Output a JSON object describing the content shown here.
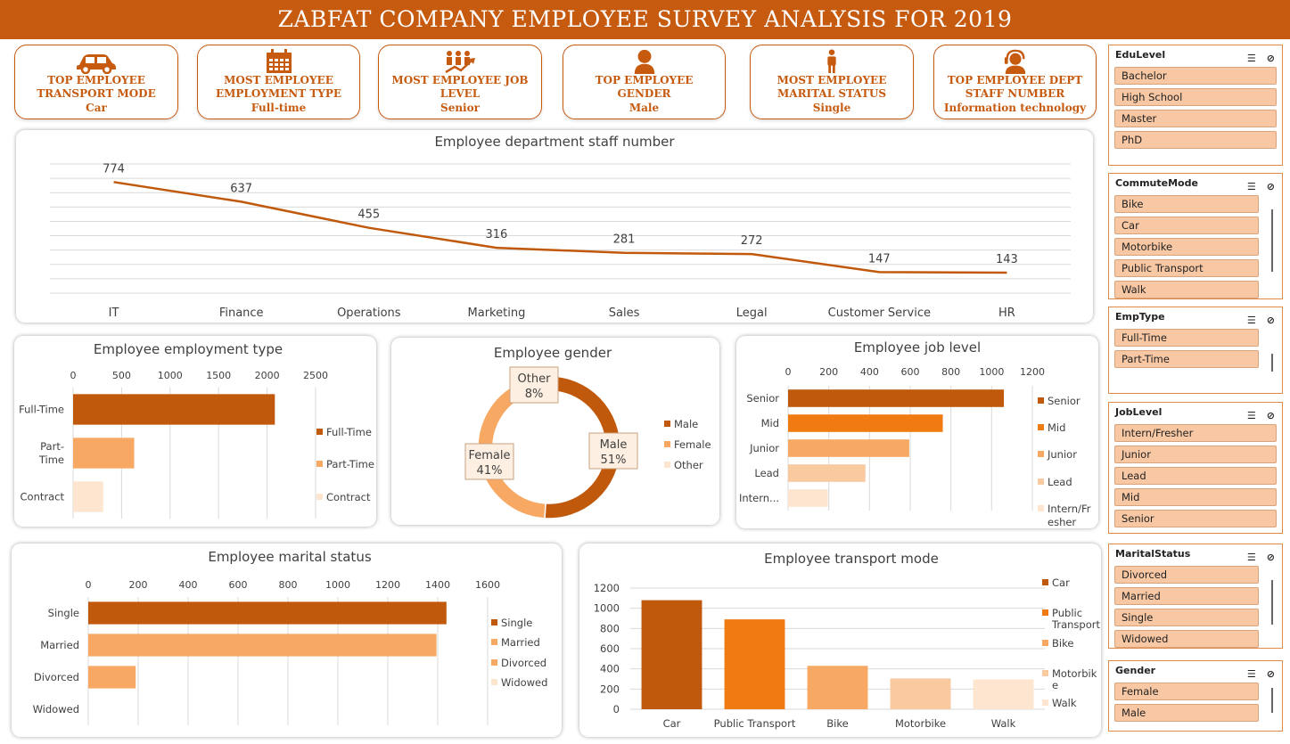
{
  "title": "ZABFAT COMPANY EMPLOYEE SURVEY ANALYSIS FOR 2019",
  "kpis": [
    {
      "title_1": "TOP EMPLOYEE",
      "title_2": "TRANSPORT MODE",
      "value": "Car",
      "icon": "car-icon"
    },
    {
      "title_1": "MOST EMPLOYEE",
      "title_2": "EMPLOYMENT TYPE",
      "value": "Full-time",
      "icon": "calendar-icon"
    },
    {
      "title_1": "MOST EMPLOYEE JOB",
      "title_2": "LEVEL",
      "value": "Senior",
      "icon": "growth-people-icon"
    },
    {
      "title_1": "TOP EMPLOYEE",
      "title_2": "GENDER",
      "value": "Male",
      "icon": "person-icon"
    },
    {
      "title_1": "MOST EMPLOYEE",
      "title_2": "MARITAL STATUS",
      "value": "Single",
      "icon": "standing-person-icon"
    },
    {
      "title_1": "TOP  EMPLOYEE DEPT",
      "title_2": "STAFF NUMBER",
      "value": "Information technology",
      "icon": "support-agent-icon"
    }
  ],
  "colors": {
    "accent": "#c65a0f",
    "dark": "#c0590c",
    "orange": "#f07b12",
    "light": "#f7a862",
    "pale": "#f9c9a0",
    "paler": "#fde5d0",
    "slicer_item": "#f8c7a3"
  },
  "chart_data": [
    {
      "id": "dept",
      "type": "line",
      "title": "Employee department staff number",
      "categories": [
        "IT",
        "Finance",
        "Operations",
        "Marketing",
        "Sales",
        "Legal",
        "Customer Service",
        "HR"
      ],
      "values": [
        774,
        637,
        455,
        316,
        281,
        272,
        147,
        143
      ],
      "ylim": [
        0,
        900
      ],
      "grid": true,
      "legend": "none"
    },
    {
      "id": "emptype",
      "type": "bar",
      "orientation": "horizontal",
      "title": "Employee employment type",
      "categories": [
        "Full-Time",
        "Part-Time",
        "Contract"
      ],
      "values": [
        2080,
        630,
        310
      ],
      "xlim": [
        0,
        2500
      ],
      "ticks": [
        "0",
        "500",
        "1000",
        "1500",
        "2000",
        "2500"
      ],
      "legend": "right",
      "legend_entries": [
        "Full-Time",
        "Part-Time",
        "Contract"
      ]
    },
    {
      "id": "gender",
      "type": "pie",
      "title": "Employee gender",
      "categories": [
        "Male",
        "Female",
        "Other"
      ],
      "values": [
        51,
        41,
        8
      ],
      "labels": [
        "Male",
        "Female",
        "Other"
      ],
      "percent_labels": [
        "51%",
        "41%",
        "8%"
      ],
      "legend": "right",
      "legend_entries": [
        "Male",
        "Female",
        "Other"
      ]
    },
    {
      "id": "joblevel",
      "type": "bar",
      "orientation": "horizontal",
      "title": "Employee job level",
      "categories": [
        "Senior",
        "Mid",
        "Junior",
        "Lead",
        "Intern..."
      ],
      "values": [
        1060,
        760,
        595,
        380,
        195
      ],
      "xlim": [
        0,
        1200
      ],
      "ticks": [
        "0",
        "200",
        "400",
        "600",
        "800",
        "1000",
        "1200"
      ],
      "legend": "right",
      "legend_entries": [
        "Senior",
        "Mid",
        "Junior",
        "Lead",
        "Intern/Fr",
        "esher"
      ]
    },
    {
      "id": "marital",
      "type": "bar",
      "orientation": "horizontal",
      "title": "Employee marital status",
      "categories": [
        "Single",
        "Married",
        "Divorced",
        "Widowed"
      ],
      "values": [
        1435,
        1395,
        190,
        0
      ],
      "xlim": [
        0,
        1600
      ],
      "ticks": [
        "0",
        "200",
        "400",
        "600",
        "800",
        "1000",
        "1200",
        "1400",
        "1600"
      ],
      "legend": "right",
      "legend_entries": [
        "Single",
        "Married",
        "Divorced",
        "Widowed"
      ]
    },
    {
      "id": "transport",
      "type": "bar",
      "orientation": "vertical",
      "title": "Employee transport mode",
      "categories": [
        "Car",
        "Public Transport",
        "Bike",
        "Motorbike",
        "Walk"
      ],
      "values": [
        1080,
        890,
        430,
        305,
        295
      ],
      "ylim": [
        0,
        1200
      ],
      "ticks": [
        "0",
        "200",
        "400",
        "600",
        "800",
        "1000",
        "1200"
      ],
      "legend": "right",
      "legend_entries": [
        "Car",
        "Public",
        "Transport",
        "Bike",
        "Motorbik",
        "e",
        "Walk"
      ]
    }
  ],
  "slicers": [
    {
      "title": "EduLevel",
      "items": [
        "Bachelor",
        "High School",
        "Master",
        "PhD"
      ]
    },
    {
      "title": "CommuteMode",
      "items": [
        "Bike",
        "Car",
        "Motorbike",
        "Public Transport",
        "Walk"
      ]
    },
    {
      "title": "EmpType",
      "items": [
        "Full-Time",
        "Part-Time"
      ]
    },
    {
      "title": "JobLevel",
      "items": [
        "Intern/Fresher",
        "Junior",
        "Lead",
        "Mid",
        "Senior"
      ]
    },
    {
      "title": "MaritalStatus",
      "items": [
        "Divorced",
        "Married",
        "Single",
        "Widowed"
      ]
    },
    {
      "title": "Gender",
      "items": [
        "Female",
        "Male"
      ]
    }
  ]
}
